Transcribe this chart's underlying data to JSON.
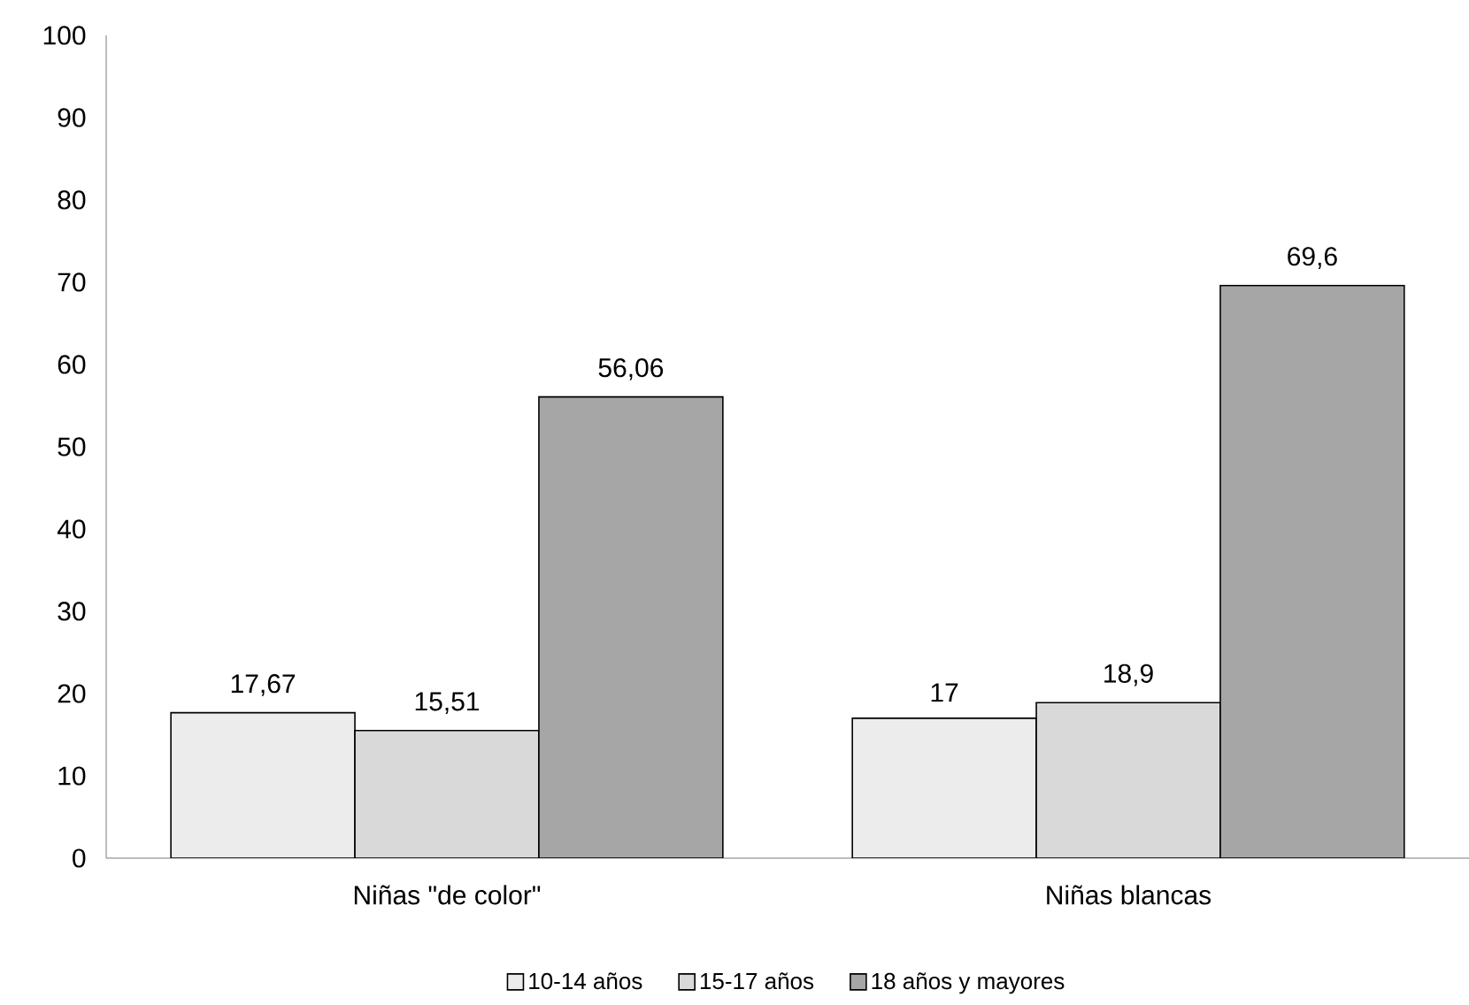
{
  "chart_data": {
    "type": "bar",
    "categories": [
      "Niñas \"de color\"",
      "Niñas blancas"
    ],
    "series": [
      {
        "name": "10-14 años",
        "color": "#ececec",
        "values": [
          17.67,
          17
        ],
        "value_labels": [
          "17,67",
          "17"
        ]
      },
      {
        "name": "15-17 años",
        "color": "#d9d9d9",
        "values": [
          15.51,
          18.9
        ],
        "value_labels": [
          "15,51",
          "18,9"
        ]
      },
      {
        "name": "18 años y mayores",
        "color": "#a6a6a6",
        "values": [
          56.06,
          69.6
        ],
        "value_labels": [
          "56,06",
          "69,6"
        ]
      }
    ],
    "ylim": [
      0,
      100
    ],
    "yticks": [
      0,
      10,
      20,
      30,
      40,
      50,
      60,
      70,
      80,
      90,
      100
    ],
    "grid": false,
    "legend": "bottom"
  }
}
